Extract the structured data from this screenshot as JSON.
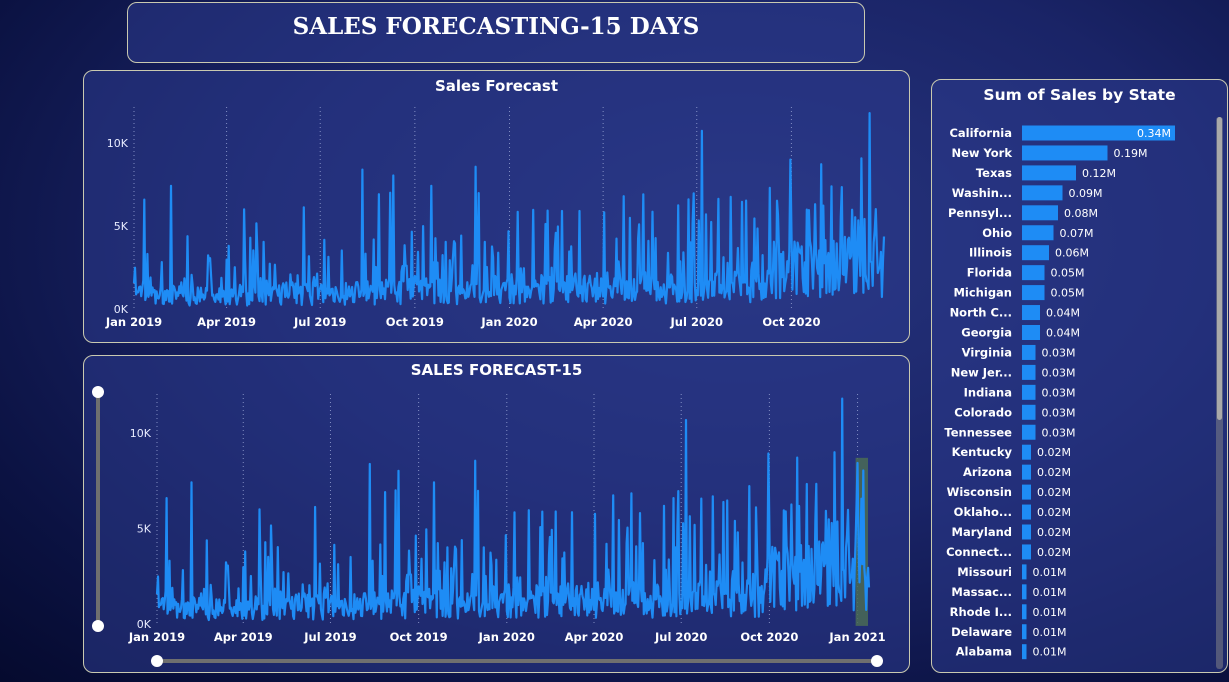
{
  "page_title": "SALES FORECASTING-15 DAYS",
  "chart_data": [
    {
      "type": "line",
      "title": "Sales Forecast",
      "x_ticks": [
        "Jan 2019",
        "Apr 2019",
        "Jul 2019",
        "Oct 2019",
        "Jan 2020",
        "Apr 2020",
        "Jul 2020",
        "Oct 2020"
      ],
      "y_ticks": [
        "0K",
        "5K",
        "10K"
      ],
      "x_range": [
        "2019-01-01",
        "2020-12-30"
      ],
      "ylim": [
        0,
        10000
      ],
      "grid": "vertical dotted",
      "color": "#1e8cf5",
      "series": [
        {
          "description": "daily sales, about 730 points"
        }
      ]
    },
    {
      "type": "line",
      "title": "SALES FORECAST-15",
      "x_ticks": [
        "Jan 2019",
        "Apr 2019",
        "Jul 2019",
        "Oct 2019",
        "Jan 2020",
        "Apr 2020",
        "Jul 2020",
        "Oct 2020",
        "Jan 2021"
      ],
      "y_ticks": [
        "0K",
        "5K",
        "10K"
      ],
      "x_range": [
        "2019-01-01",
        "2021-01-14"
      ],
      "ylim": [
        0,
        10000
      ],
      "grid": "vertical dotted",
      "forecast_days": 15,
      "color": "#1e8cf5",
      "forecast_band_color": "#4a6b55"
    },
    {
      "type": "bar",
      "orientation": "horizontal",
      "title": "Sum of Sales by State",
      "color": "#1e8cf5",
      "categories": [
        "California",
        "New York",
        "Texas",
        "Washin...",
        "Pennsyl...",
        "Ohio",
        "Illinois",
        "Florida",
        "Michigan",
        "North C...",
        "Georgia",
        "Virginia",
        "New Jer...",
        "Indiana",
        "Colorado",
        "Tennessee",
        "Kentucky",
        "Arizona",
        "Wisconsin",
        "Oklaho...",
        "Maryland",
        "Connect...",
        "Missouri",
        "Massac...",
        "Rhode I...",
        "Delaware",
        "Alabama"
      ],
      "values": [
        0.34,
        0.19,
        0.12,
        0.09,
        0.08,
        0.07,
        0.06,
        0.05,
        0.05,
        0.04,
        0.04,
        0.03,
        0.03,
        0.03,
        0.03,
        0.03,
        0.02,
        0.02,
        0.02,
        0.02,
        0.02,
        0.02,
        0.01,
        0.01,
        0.01,
        0.01,
        0.01
      ],
      "labels": [
        "0.34M",
        "0.19M",
        "0.12M",
        "0.09M",
        "0.08M",
        "0.07M",
        "0.06M",
        "0.05M",
        "0.05M",
        "0.04M",
        "0.04M",
        "0.03M",
        "0.03M",
        "0.03M",
        "0.03M",
        "0.03M",
        "0.02M",
        "0.02M",
        "0.02M",
        "0.02M",
        "0.02M",
        "0.02M",
        "0.01M",
        "0.01M",
        "0.01M",
        "0.01M",
        "0.01M"
      ]
    }
  ]
}
